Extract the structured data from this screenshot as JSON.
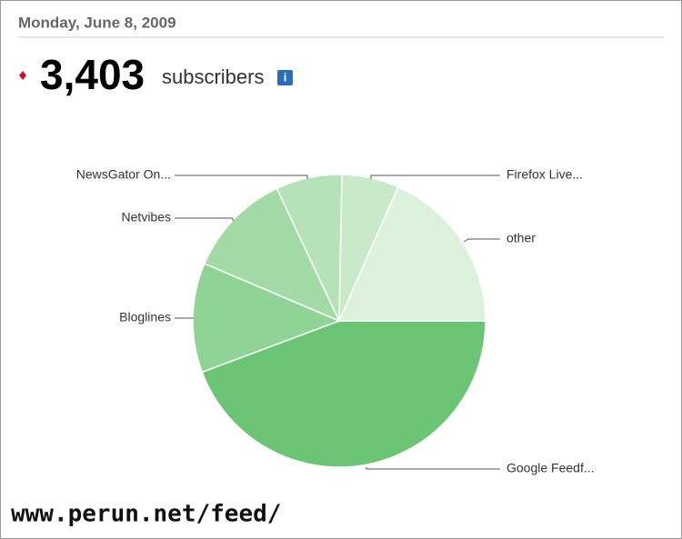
{
  "header": {
    "date": "Monday, June 8, 2009",
    "count": "3,403",
    "unit": "subscribers",
    "info": "i"
  },
  "chart_data": {
    "type": "pie",
    "categories": [
      "Google Feedf...",
      "Bloglines",
      "Netvibes",
      "NewsGator On...",
      "Firefox Live...",
      "other"
    ],
    "values": [
      44.3,
      12.1,
      11.6,
      7.3,
      6.3,
      18.4
    ],
    "colors": [
      "#6cc574",
      "#8fd494",
      "#a2dba5",
      "#b6e2b7",
      "#c8eac9",
      "#ddf2dd"
    ]
  },
  "watermark": "www.perun.net/feed/"
}
